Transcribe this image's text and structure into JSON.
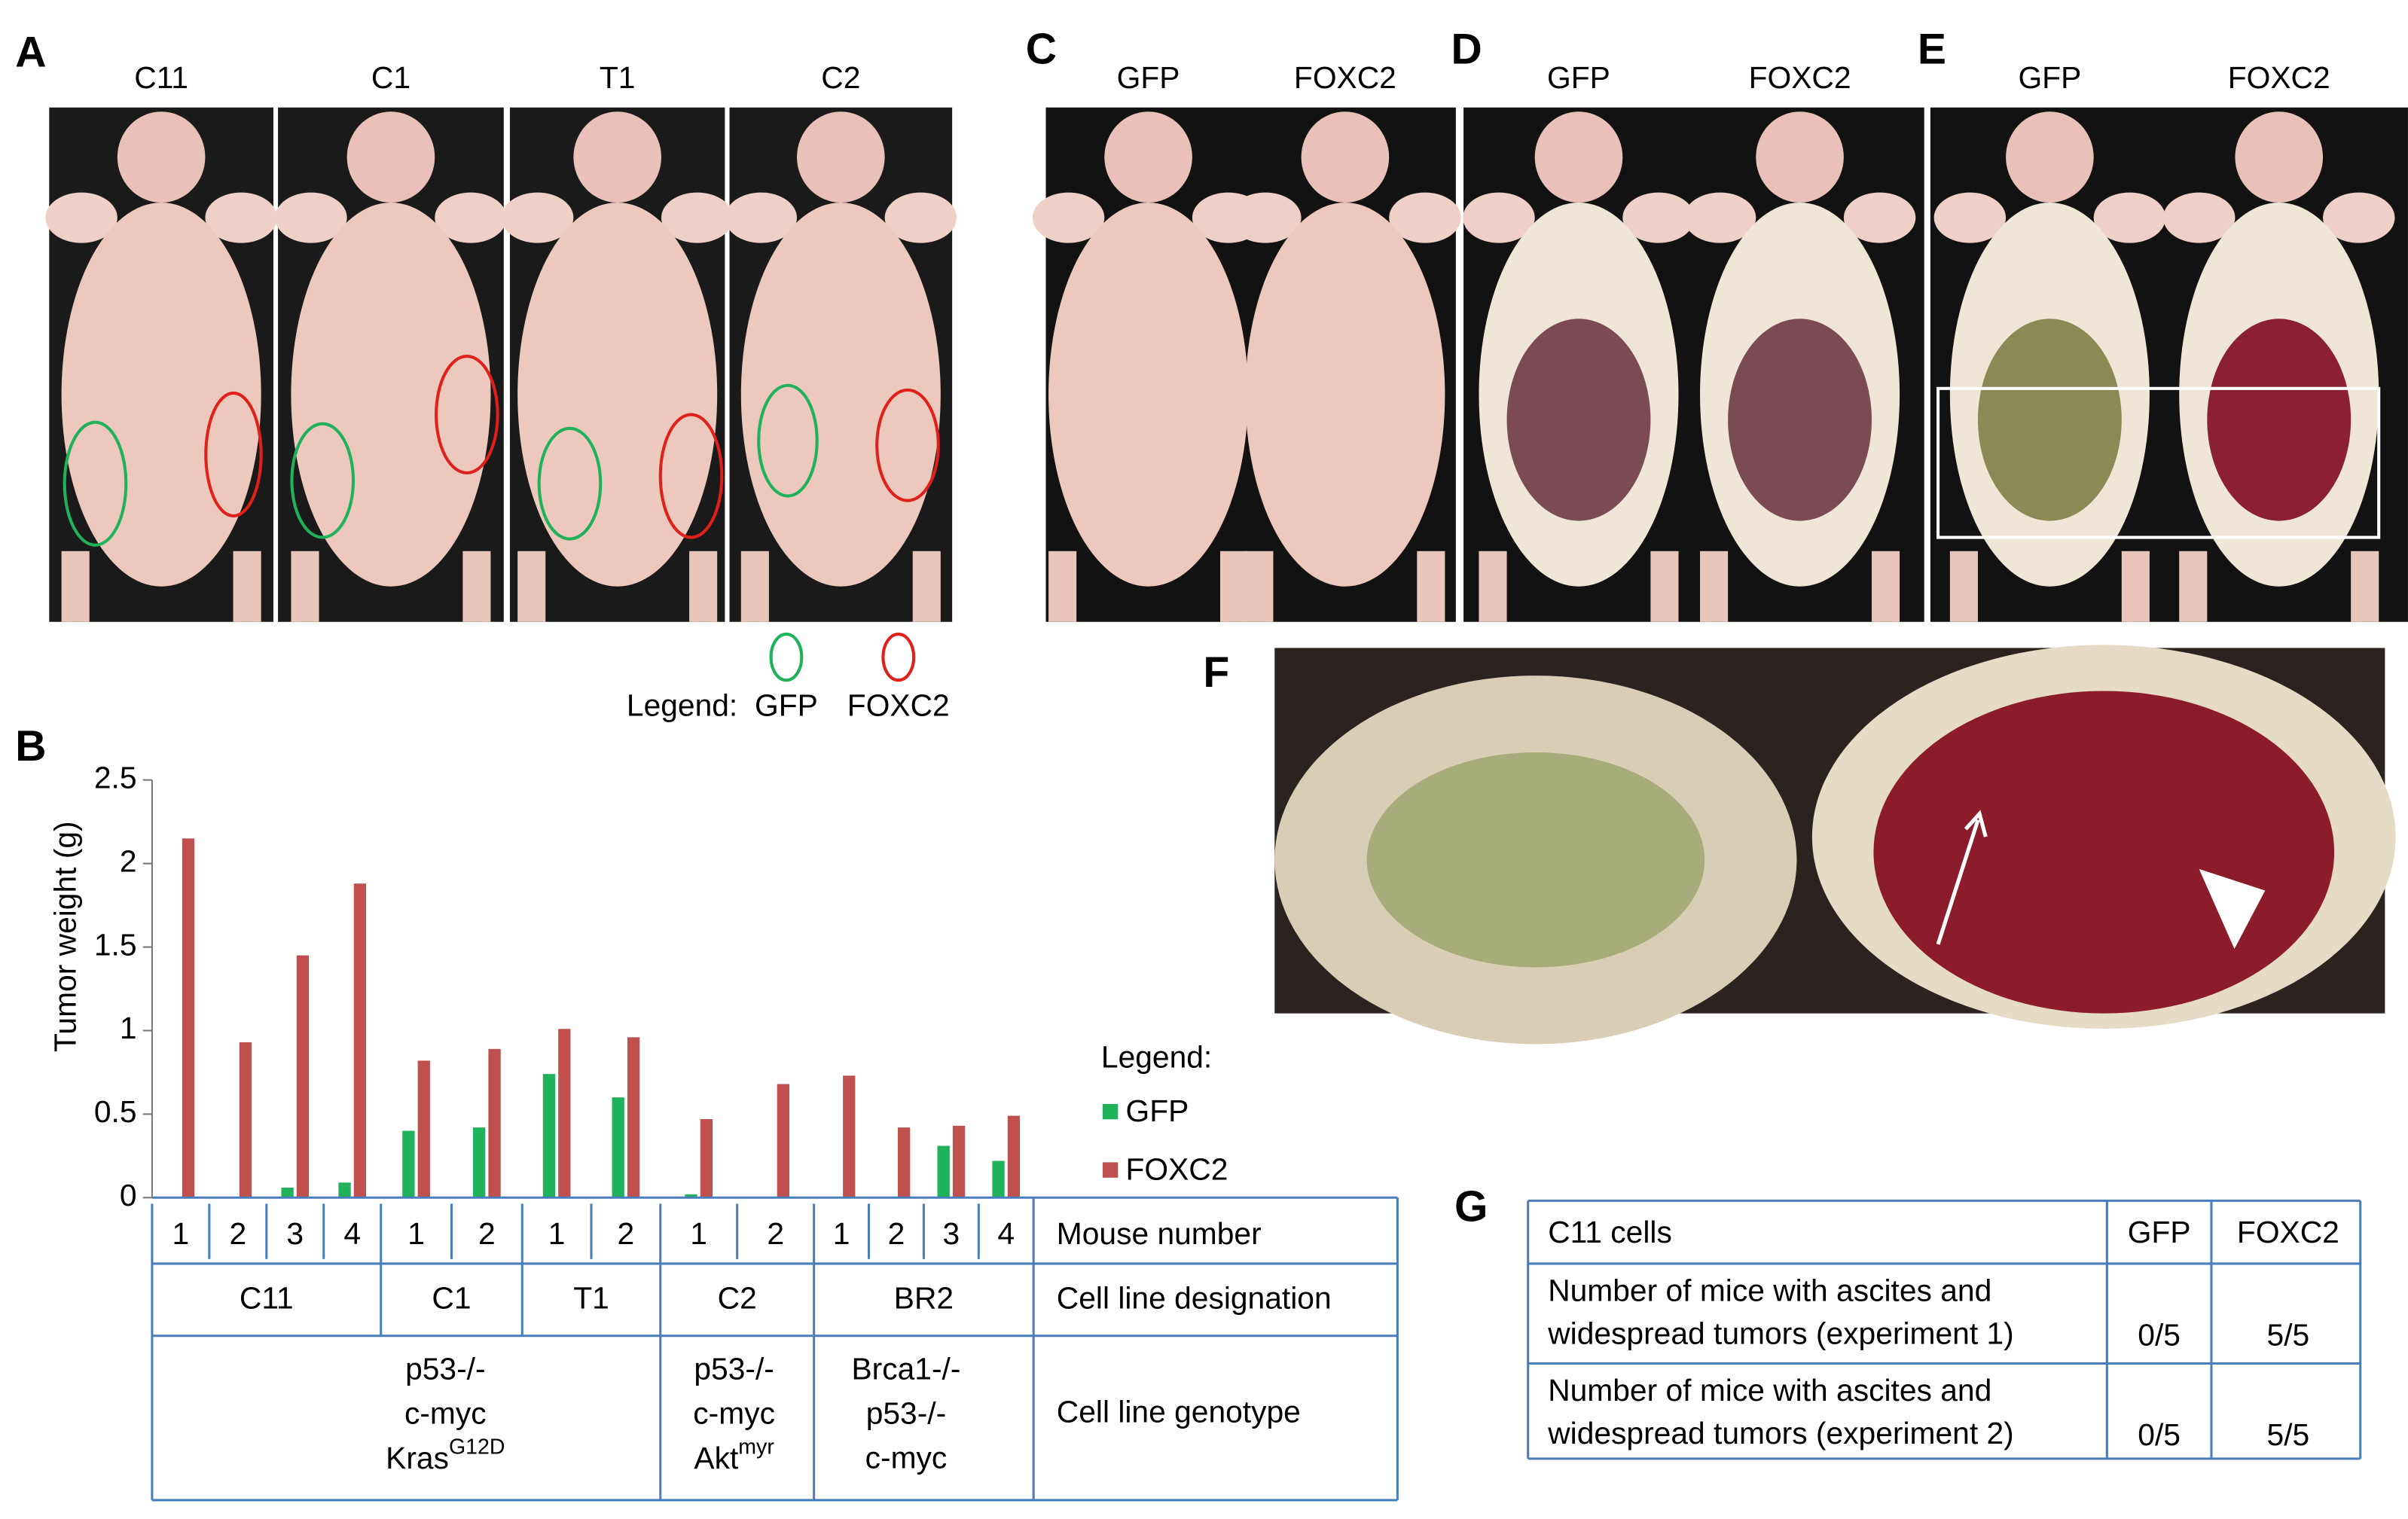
{
  "panel_labels": [
    "A",
    "B",
    "C",
    "D",
    "E",
    "F",
    "G"
  ],
  "panel_a": {
    "columns": [
      "C11",
      "C1",
      "T1",
      "C2"
    ],
    "legend_title": "Legend:",
    "legend_items": [
      "GFP",
      "FOXC2"
    ]
  },
  "panel_c": {
    "columns": [
      "GFP",
      "FOXC2"
    ]
  },
  "panel_d": {
    "columns": [
      "GFP",
      "FOXC2"
    ]
  },
  "panel_e": {
    "columns": [
      "GFP",
      "FOXC2"
    ]
  },
  "chart_data": {
    "type": "bar",
    "y_label": "Tumor weight (g)",
    "groups": [
      {
        "name": "C11",
        "categories": [
          "1",
          "2",
          "3",
          "4"
        ]
      },
      {
        "name": "C1",
        "categories": [
          "1",
          "2"
        ]
      },
      {
        "name": "T1",
        "categories": [
          "1",
          "2"
        ]
      },
      {
        "name": "C2",
        "categories": [
          "1",
          "2"
        ]
      },
      {
        "name": "BR2",
        "categories": [
          "1",
          "2",
          "3",
          "4"
        ]
      }
    ],
    "series": [
      {
        "name": "GFP",
        "color": "#1fb25a",
        "values": [
          0,
          0,
          0.06,
          0.09,
          0.4,
          0.42,
          0.74,
          0.6,
          0.02,
          0,
          0,
          0,
          0.31,
          0.22
        ]
      },
      {
        "name": "FOXC2",
        "color": "#c0504d",
        "values": [
          2.15,
          0.93,
          1.45,
          1.88,
          0.82,
          0.89,
          1.01,
          0.96,
          0.47,
          0.68,
          0.73,
          0.42,
          0.43,
          0.49
        ]
      }
    ],
    "ylim": [
      0,
      2.5
    ],
    "yticks": [
      0,
      0.5,
      1,
      1.5,
      2,
      2.5
    ],
    "legend_title": "Legend:",
    "row_labels": [
      "Mouse number",
      "Cell line designation",
      "Cell line genotype"
    ],
    "genotypes": [
      {
        "lines": [
          "p53-/-",
          "c-myc",
          {
            "text": "Kras",
            "sup": "G12D"
          }
        ]
      },
      {
        "lines": [
          "p53-/-",
          "c-myc",
          {
            "text": "Akt",
            "sup": "myr"
          }
        ]
      },
      {
        "lines": [
          "Brca1-/-",
          "p53-/-",
          "c-myc"
        ]
      }
    ]
  },
  "table_g": {
    "header": [
      "C11 cells",
      "GFP",
      "FOXC2"
    ],
    "rows": [
      [
        [
          "Number of mice with ascites and",
          "widespread tumors (experiment 1)"
        ],
        "0/5",
        "5/5"
      ],
      [
        [
          "Number of mice with ascites and",
          "widespread tumors (experiment 2)"
        ],
        "0/5",
        "5/5"
      ]
    ]
  }
}
